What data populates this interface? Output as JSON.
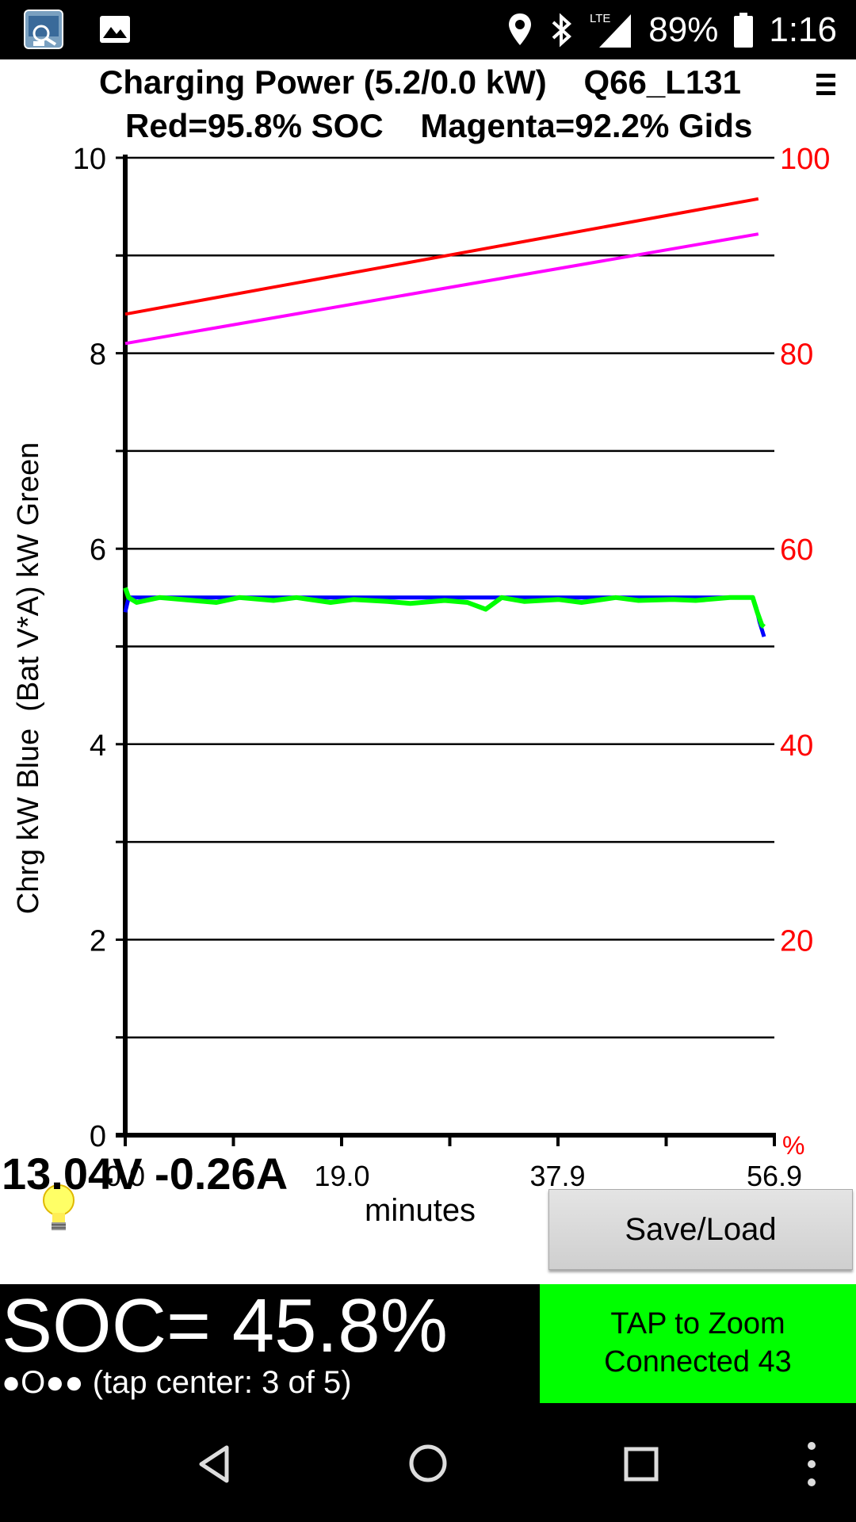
{
  "status_bar": {
    "battery": "89%",
    "time": "1:16",
    "network": "LTE",
    "left_icons": [
      "app-icon",
      "image-icon"
    ],
    "right_icons": [
      "location-icon",
      "bluetooth-icon",
      "signal-icon",
      "battery-icon"
    ]
  },
  "header": {
    "title": "Charging Power (5.2/0.0 kW)    Q66_L131",
    "subtitle": "Red=95.8% SOC    Magenta=92.2% Gids",
    "menu_icon": "overflow-menu-icon"
  },
  "chart_data": {
    "type": "line",
    "xlabel": "minutes",
    "ylabel": "Chrg kW Blue  (Bat V*A) kW Green",
    "y2label": "%",
    "xlim": [
      0,
      56.9
    ],
    "ylim": [
      0,
      10
    ],
    "y2lim": [
      0,
      100
    ],
    "x_ticks": [
      "0.0",
      "19.0",
      "37.9",
      "56.9"
    ],
    "y_ticks": [
      "0",
      "2",
      "4",
      "6",
      "8",
      "10"
    ],
    "y2_ticks": [
      "20",
      "40",
      "60",
      "80",
      "100"
    ],
    "grid": true,
    "series": [
      {
        "axis": "left",
        "color": "#0000ff",
        "x": [
          0,
          0.3,
          5,
          10,
          15,
          20,
          25,
          30,
          35,
          40,
          45,
          50,
          55,
          55.3,
          55.6,
          56.0
        ],
        "values": [
          5.35,
          5.5,
          5.5,
          5.5,
          5.5,
          5.5,
          5.5,
          5.5,
          5.5,
          5.5,
          5.5,
          5.5,
          5.5,
          5.4,
          5.25,
          5.1
        ]
      },
      {
        "axis": "left",
        "color": "#00ff00",
        "x": [
          0,
          0.3,
          1,
          3,
          5,
          8,
          10,
          13,
          15,
          18,
          20,
          23,
          25,
          28,
          30,
          31.6,
          33,
          35,
          38,
          40,
          43,
          45,
          48,
          50,
          53,
          55,
          55.4,
          55.8,
          56.0
        ],
        "values": [
          5.6,
          5.5,
          5.45,
          5.5,
          5.48,
          5.45,
          5.5,
          5.47,
          5.5,
          5.45,
          5.48,
          5.46,
          5.44,
          5.47,
          5.45,
          5.38,
          5.5,
          5.46,
          5.48,
          5.45,
          5.5,
          5.47,
          5.48,
          5.47,
          5.5,
          5.5,
          5.35,
          5.22,
          5.2
        ]
      },
      {
        "axis": "right",
        "color": "#ff0000",
        "x": [
          0,
          55.5
        ],
        "values": [
          84,
          95.8
        ]
      },
      {
        "axis": "right",
        "color": "#ff00ff",
        "x": [
          0,
          55.5
        ],
        "values": [
          81,
          92.2
        ]
      }
    ]
  },
  "footer": {
    "readout": "13.04V -0.26A",
    "save_load_button": "Save/Load",
    "soc": "SOC= 45.8%",
    "page_dots": "●O●● (tap center: 3 of 5)",
    "tap_box_line1": "TAP to Zoom",
    "tap_box_line2": "Connected 43",
    "bulb_icon": "lightbulb-icon"
  },
  "nav_bar": {
    "icons": [
      "back-icon",
      "home-icon",
      "recents-icon",
      "more-vert-icon"
    ]
  },
  "colors": {
    "soc_line": "#ff0000",
    "gids_line": "#ff00ff",
    "charge_kw": "#0000ff",
    "bat_va_kw": "#00ff00",
    "tap_box": "#00ff00",
    "right_axis": "#ff0000"
  }
}
